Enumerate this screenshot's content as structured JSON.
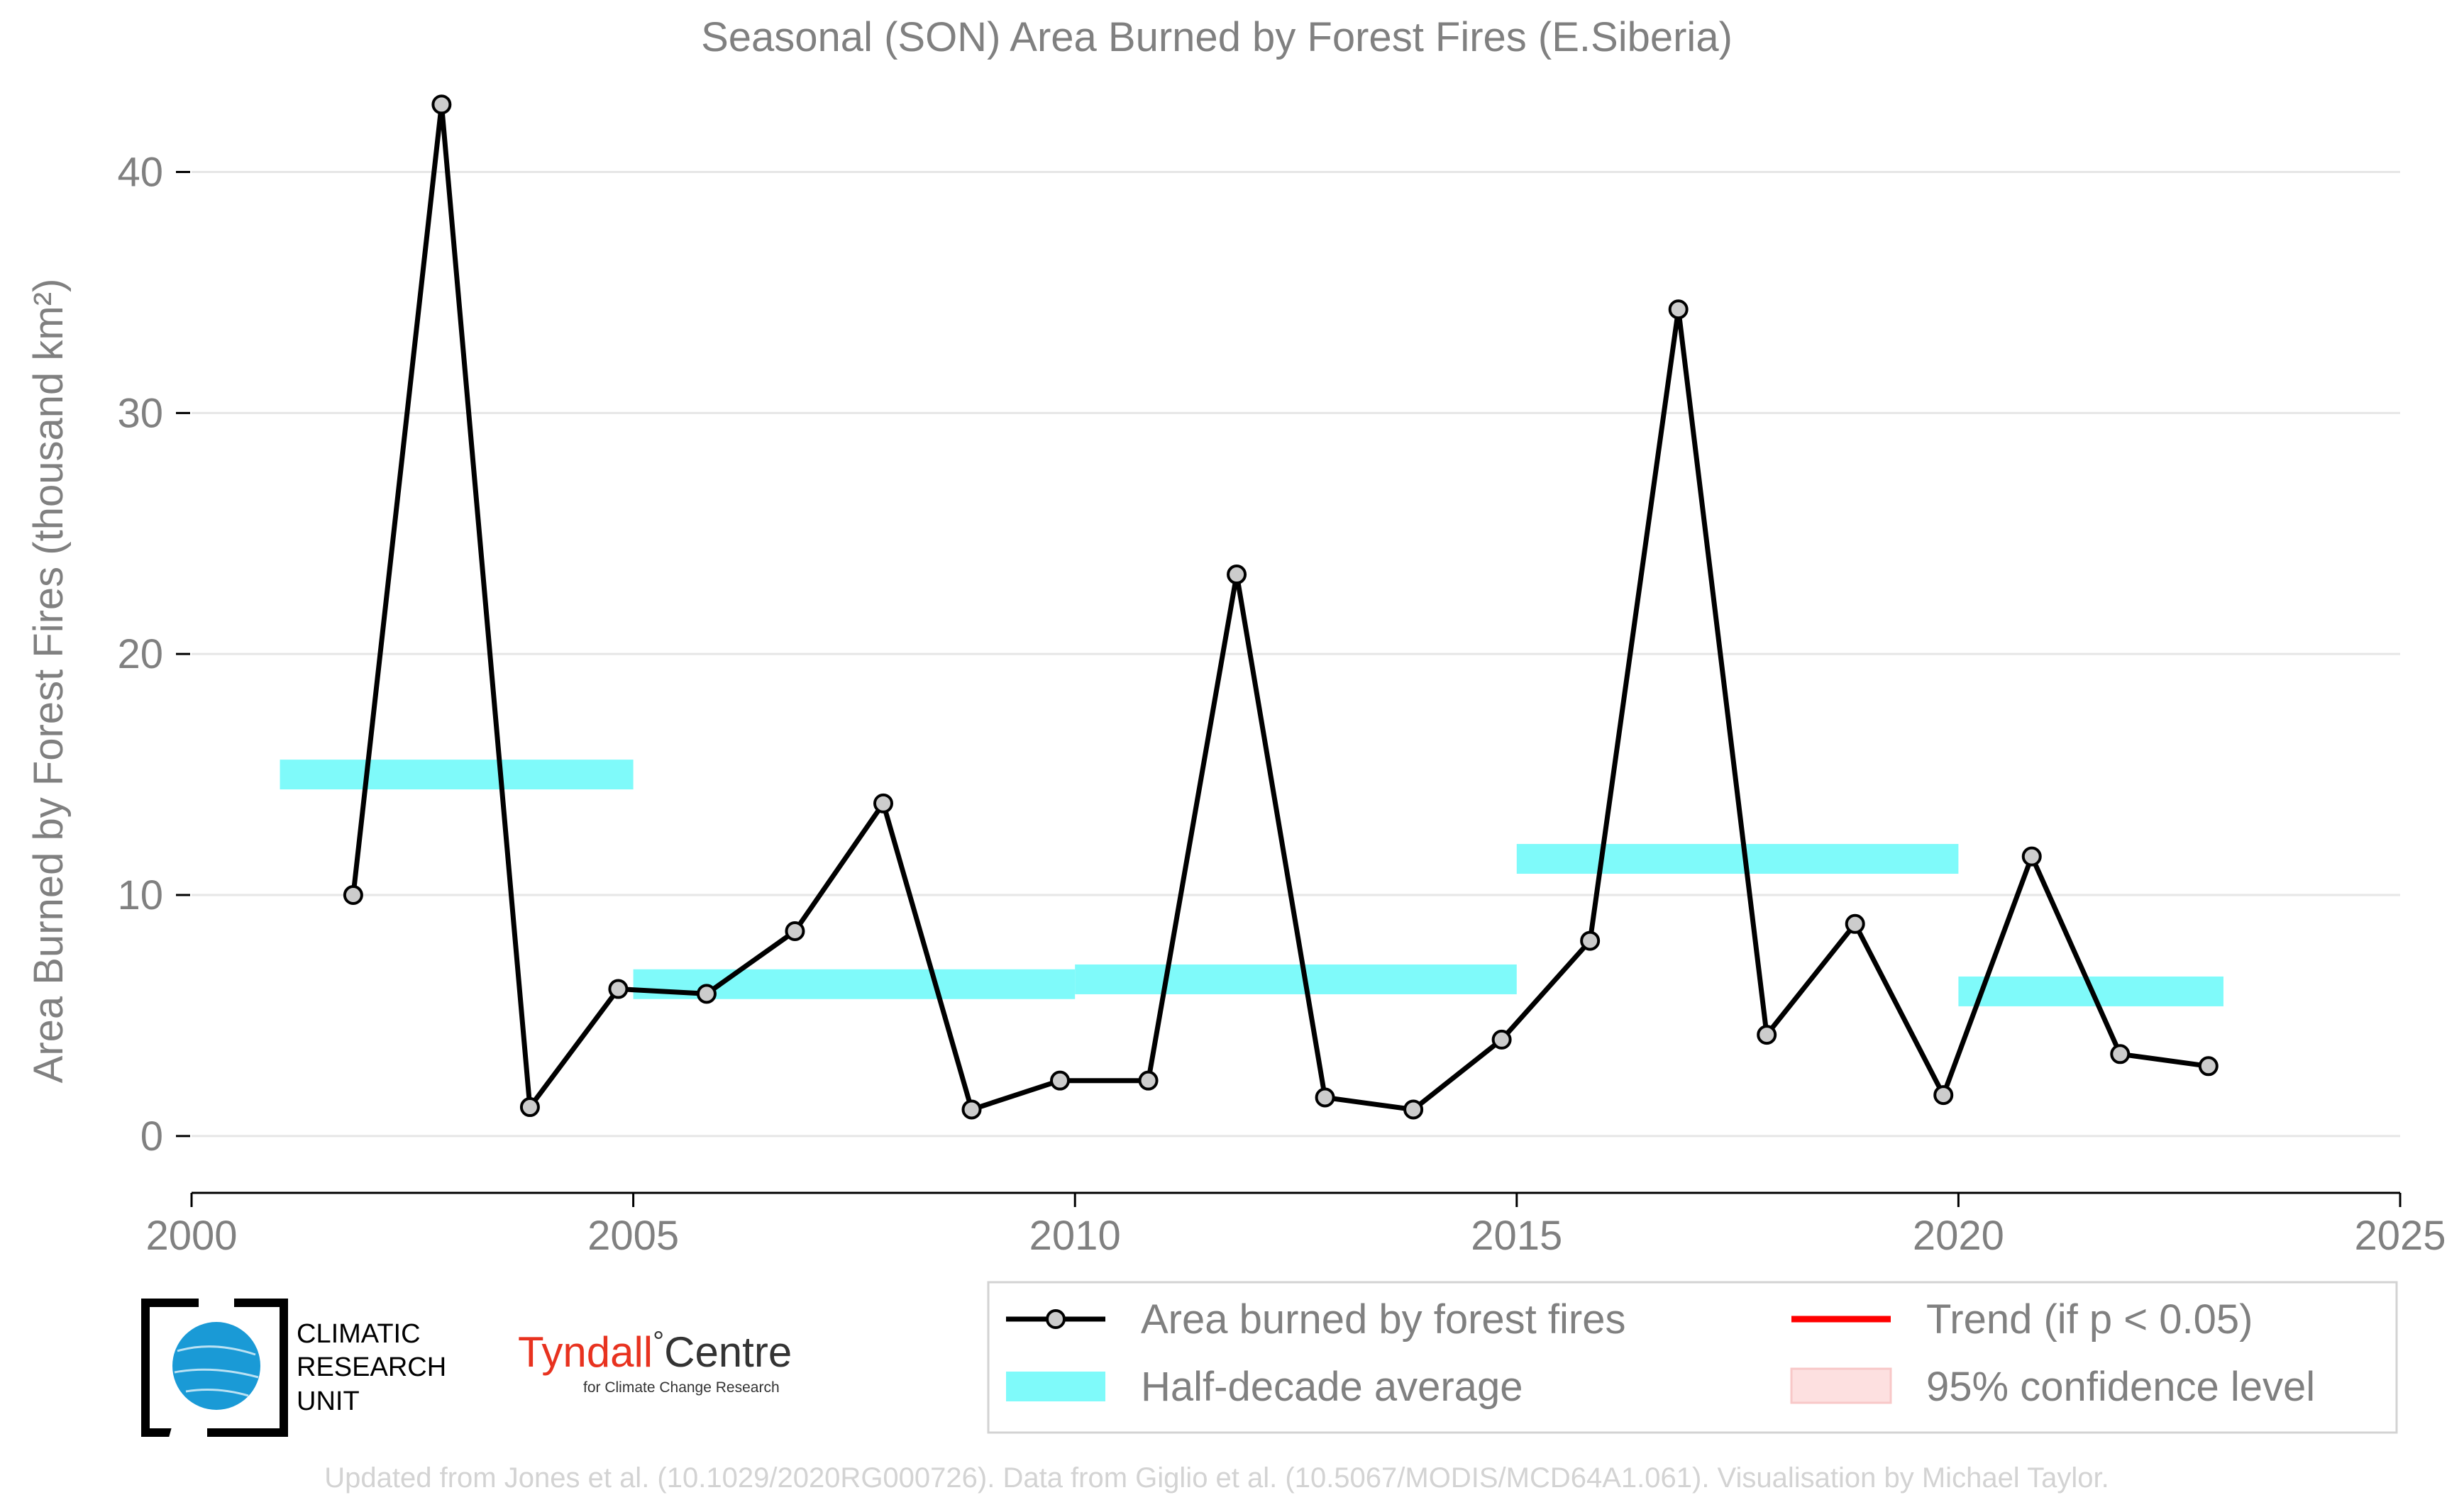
{
  "chart_data": {
    "type": "line",
    "title": "Seasonal (SON) Area Burned by Forest Fires (E.Siberia)",
    "ylabel": "Area Burned by Forest Fires (thousand km²)",
    "xlabel": "",
    "xlim": [
      2000,
      2025
    ],
    "ylim": [
      -2.3,
      43.9
    ],
    "x_ticks": [
      2000,
      2005,
      2010,
      2015,
      2020,
      2025
    ],
    "y_ticks": [
      0,
      10,
      20,
      30,
      40
    ],
    "grid": "horizontal",
    "series": [
      {
        "name": "Area burned by forest fires",
        "type": "line-marker",
        "color": "#000000",
        "marker_fill": "#cccccc",
        "x": [
          2001.83,
          2002.83,
          2003.83,
          2004.83,
          2005.83,
          2006.83,
          2007.83,
          2008.83,
          2009.83,
          2010.83,
          2011.83,
          2012.83,
          2013.83,
          2014.83,
          2015.83,
          2016.83,
          2017.83,
          2018.83,
          2019.83,
          2020.83,
          2021.83,
          2022.83
        ],
        "y": [
          10.0,
          42.8,
          1.2,
          6.1,
          5.9,
          8.5,
          13.8,
          1.1,
          2.3,
          2.3,
          23.3,
          1.6,
          1.1,
          4.0,
          8.1,
          34.3,
          4.2,
          8.8,
          1.7,
          11.6,
          3.4,
          2.9
        ]
      },
      {
        "name": "Half-decade average",
        "type": "segments",
        "color": "#7ffafa",
        "segments": [
          {
            "x0": 2001.0,
            "x1": 2005.0,
            "y": 15.0
          },
          {
            "x0": 2005.0,
            "x1": 2010.0,
            "y": 6.3
          },
          {
            "x0": 2010.0,
            "x1": 2015.0,
            "y": 6.5
          },
          {
            "x0": 2015.0,
            "x1": 2020.0,
            "y": 11.5
          },
          {
            "x0": 2020.0,
            "x1": 2023.0,
            "y": 6.0
          }
        ]
      }
    ],
    "legend": {
      "position": "bottom-right",
      "entries": [
        {
          "label": "Area burned by forest fires",
          "kind": "line-marker",
          "color": "#000000"
        },
        {
          "label": "Trend (if p < 0.05)",
          "kind": "line",
          "color": "#ff0000"
        },
        {
          "label": "Half-decade average",
          "kind": "band",
          "color": "#7ffafa"
        },
        {
          "label": "95% confidence level",
          "kind": "patch",
          "color": "#fde0e0"
        }
      ]
    },
    "footer": "Updated from Jones et al. (10.1029/2020RG000726). Data from Giglio et al. (10.5067/MODIS/MCD64A1.061). Visualisation by Michael Taylor."
  },
  "logos": {
    "cru": {
      "line1": "CLIMATIC",
      "line2": "RESEARCH",
      "line3": "UNIT"
    },
    "tyndall": {
      "main": "Tyndall",
      "degree": "°",
      "centre": "Centre",
      "sub": "for Climate Change Research"
    }
  },
  "colors": {
    "text": "#808080",
    "grid": "#e6e6e6",
    "axis": "#000000",
    "series_line": "#000000",
    "marker_fill": "#cccccc",
    "band": "#7ffafa",
    "trend": "#ff0000",
    "confidence": "#fde0e0",
    "footer": "#d3d3d3",
    "cru_blue": "#1a9ad6",
    "tyndall_red": "#e8321f"
  }
}
